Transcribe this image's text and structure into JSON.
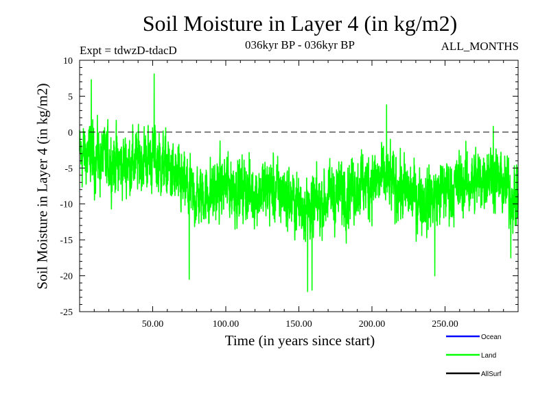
{
  "chart_data": {
    "type": "line",
    "title": "Soil Moisture in Layer 4 (in kg/m2)",
    "subtitle": "036kyr BP - 036kyr BP",
    "experiment": "Expt = tdwzD-tdacD",
    "period": "ALL_MONTHS",
    "xlabel": "Time (in years since start)",
    "ylabel": "Soil Moisture in Layer 4 (in kg/m2)",
    "xlim": [
      0,
      300
    ],
    "ylim": [
      -25,
      10
    ],
    "x_ticks": [
      50,
      100,
      150,
      200,
      250
    ],
    "x_tick_labels": [
      "50.00",
      "100.00",
      "150.00",
      "200.00",
      "250.00"
    ],
    "y_ticks": [
      10,
      5,
      0,
      -5,
      -10,
      -15,
      -20,
      -25
    ],
    "y_tick_labels": [
      "10",
      "5",
      "0",
      "-5",
      "-10",
      "-15",
      "-20",
      "-25"
    ],
    "reference_line": 0,
    "series": [
      {
        "name": "Land",
        "color": "#00ff00",
        "x": [
          0,
          10,
          20,
          30,
          40,
          50,
          60,
          70,
          80,
          90,
          100,
          110,
          120,
          130,
          140,
          150,
          160,
          170,
          180,
          190,
          200,
          210,
          220,
          230,
          240,
          250,
          260,
          270,
          280,
          290,
          300
        ],
        "values": [
          -3,
          -3.5,
          -4,
          -4.5,
          -4,
          -3.5,
          -5,
          -7.5,
          -9,
          -8.5,
          -7.5,
          -8,
          -8.5,
          -8,
          -8.5,
          -10,
          -10.5,
          -9,
          -8.5,
          -7.5,
          -7,
          -6.5,
          -8,
          -9,
          -9.5,
          -8,
          -7.5,
          -7,
          -5.5,
          -7.5,
          -9.5
        ],
        "noise": 3,
        "notable_points": [
          [
            8,
            7.3
          ],
          [
            51,
            8.1
          ],
          [
            75,
            -20.5
          ],
          [
            156,
            -22.2
          ],
          [
            159,
            -22
          ],
          [
            210,
            3.8
          ],
          [
            243,
            -20
          ],
          [
            283,
            0.8
          ],
          [
            295,
            -17.5
          ]
        ]
      }
    ],
    "legend": {
      "position": "bottom-right",
      "entries": [
        {
          "label": "Ocean",
          "color": "#0000ff"
        },
        {
          "label": "Land",
          "color": "#00ff00"
        },
        {
          "label": "AllSurf",
          "color": "#000000"
        }
      ]
    }
  }
}
